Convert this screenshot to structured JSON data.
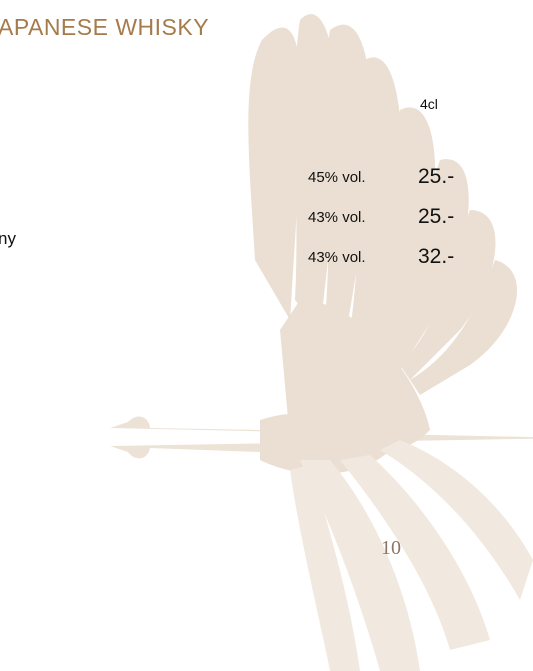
{
  "header": {
    "title": "APANESE WHISKY"
  },
  "size_header": "4cl",
  "items": [
    {
      "name": "",
      "abv": "45% vol.",
      "price": "25.-"
    },
    {
      "name": "ny",
      "abv": "43% vol.",
      "price": "25.-"
    },
    {
      "name": "",
      "abv": "43% vol.",
      "price": "32.-"
    }
  ],
  "page_number": "10"
}
